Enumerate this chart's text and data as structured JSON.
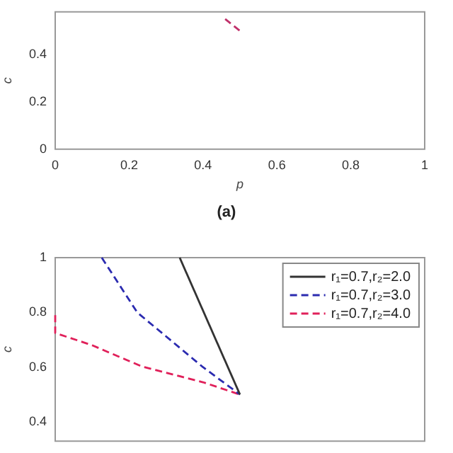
{
  "chart_data": [
    {
      "type": "line",
      "xlabel": "p",
      "ylabel": "c",
      "annotations": [
        "(a)"
      ],
      "xlim": [
        0,
        1
      ],
      "xticks": [
        0,
        0.2,
        0.4,
        0.6,
        0.8,
        1
      ],
      "ylim": [
        0,
        0.58
      ],
      "yticks": [
        0,
        0.2,
        0.4
      ],
      "grid": false,
      "legend": false,
      "marker": "none",
      "series": [
        {
          "color": "#c0306a",
          "line_style": "dashed",
          "x": [
            0.46,
            0.5
          ],
          "values": [
            0.55,
            0.5
          ]
        }
      ]
    },
    {
      "type": "line",
      "ylabel": "c",
      "xlim": [
        0,
        1
      ],
      "ylim": [
        0.33,
        1
      ],
      "yticks": [
        0.4,
        0.6,
        0.8,
        1
      ],
      "tick_labels": "y",
      "grid": false,
      "legend": "top right",
      "marker": "none",
      "series": [
        {
          "name": "r₁=0.7,r₂=2.0",
          "color": "#333333",
          "line_style": "solid",
          "x": [
            0.337,
            0.5
          ],
          "values": [
            1,
            0.5
          ]
        },
        {
          "name": "r₁=0.7,r₂=3.0",
          "color": "#2b2bb0",
          "line_style": "dashed",
          "x": [
            0.126,
            0.222,
            0.4,
            0.5
          ],
          "values": [
            1,
            0.8,
            0.6,
            0.5
          ]
        },
        {
          "name": "r₁=0.7,r₂=4.0",
          "color": "#e0205a",
          "line_style": "dashed",
          "x": [
            0,
            0,
            0.1,
            0.234,
            0.4,
            0.5
          ],
          "values": [
            0.79,
            0.725,
            0.68,
            0.603,
            0.545,
            0.5
          ]
        }
      ]
    }
  ]
}
